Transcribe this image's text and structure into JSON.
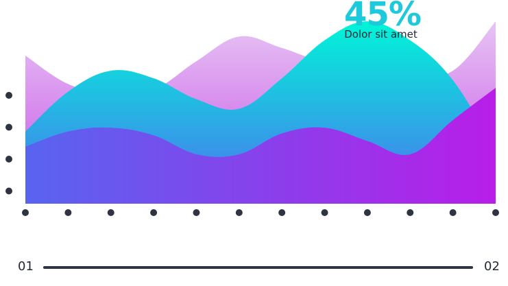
{
  "kpi": {
    "value": "45%",
    "label": "Dolor sit amet"
  },
  "range": {
    "start_label": "01",
    "end_label": "02"
  },
  "colors": {
    "accent": "#1ec9dc",
    "text": "#222836",
    "dots": "#2f3441",
    "range_line": "#2f3441",
    "back_top": "#e7c4f4",
    "back_bottom": "#c64fe6",
    "middle_top": "#00f5d8",
    "middle_bottom": "#4f6ff0",
    "front_left": "#5864ef",
    "front_right": "#b81ee8"
  },
  "chart_data": {
    "type": "area",
    "x": [
      0,
      1,
      2,
      3,
      4,
      5,
      6,
      7,
      8,
      9,
      10,
      11
    ],
    "ylim": [
      0,
      100
    ],
    "y_ticks": 4,
    "grid": false,
    "series": [
      {
        "values": [
          78,
          63,
          58,
          60,
          75,
          88,
          82,
          75,
          77,
          68,
          70,
          96
        ]
      },
      {
        "values": [
          38,
          59,
          70,
          66,
          55,
          50,
          66,
          86,
          96,
          86,
          65,
          28
        ]
      },
      {
        "values": [
          30,
          38,
          40,
          36,
          26,
          26,
          37,
          40,
          33,
          26,
          44,
          61
        ]
      }
    ]
  }
}
